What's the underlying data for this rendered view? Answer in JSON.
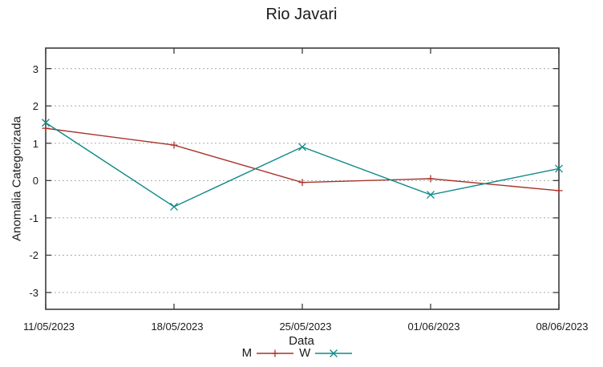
{
  "page": {
    "background": "#ffffff"
  },
  "chart_data": {
    "type": "line",
    "title": "Rio Javari",
    "xlabel": "Data",
    "ylabel": "Anomalia Categorizada",
    "categories": [
      "11/05/2023",
      "18/05/2023",
      "25/05/2023",
      "01/06/2023",
      "08/06/2023"
    ],
    "series": [
      {
        "name": "M",
        "color": "#a8342b",
        "marker": "plus",
        "values": [
          1.4,
          0.95,
          -0.05,
          0.05,
          -0.27
        ]
      },
      {
        "name": "W",
        "color": "#0f8a8a",
        "marker": "cross",
        "values": [
          1.55,
          -0.7,
          0.9,
          -0.38,
          0.32
        ]
      }
    ],
    "yticks": [
      -3,
      -2,
      -1,
      0,
      1,
      2,
      3
    ],
    "ylim": [
      -3.45,
      3.55
    ],
    "grid": "horizontal-dotted",
    "grid_color": "#ababab",
    "axis_color": "#3c3c3c",
    "text_color": "#1a1a1a",
    "legend_position": "bottom-center"
  }
}
